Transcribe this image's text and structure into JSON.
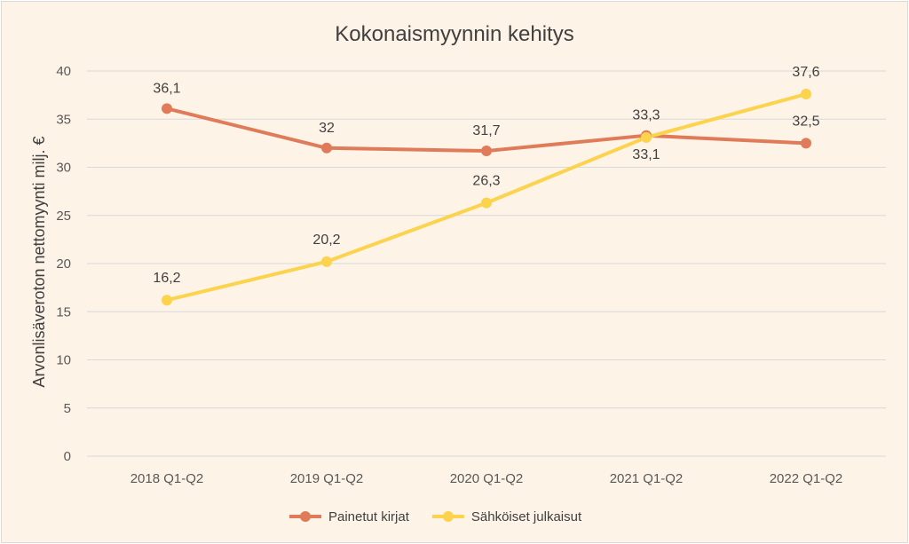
{
  "chart_data": {
    "type": "line",
    "title": "Kokonaismyynnin kehitys",
    "xlabel": "",
    "ylabel": "Arvonlisäveroton nettomyynti milj. €",
    "categories": [
      "2018 Q1-Q2",
      "2019 Q1-Q2",
      "2020 Q1-Q2",
      "2021 Q1-Q2",
      "2022 Q1-Q2"
    ],
    "yticks": [
      "0",
      "5",
      "10",
      "15",
      "20",
      "25",
      "30",
      "35",
      "40"
    ],
    "ylim": [
      0,
      40
    ],
    "grid": true,
    "legend_position": "bottom",
    "series": [
      {
        "name": "Painetut kirjat",
        "color": "#e07b5a",
        "values": [
          36.1,
          32,
          31.7,
          33.3,
          32.5
        ],
        "labels": [
          "36,1",
          "32",
          "31,7",
          "33,3",
          "32,5"
        ]
      },
      {
        "name": "Sähköiset julkaisut",
        "color": "#fcd34d",
        "values": [
          16.2,
          20.2,
          26.3,
          33.1,
          37.6
        ],
        "labels": [
          "16,2",
          "20,2",
          "26,3",
          "33,1",
          "37,6"
        ]
      }
    ]
  }
}
